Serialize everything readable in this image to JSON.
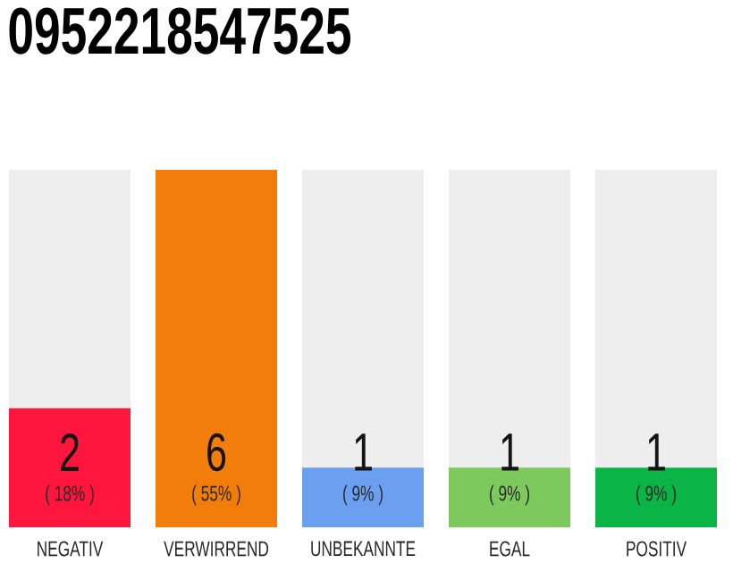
{
  "chart_data": {
    "type": "bar",
    "title": "0952218547525",
    "categories": [
      "NEGATIV",
      "VERWIRREND",
      "UNBEKANNTE",
      "EGAL",
      "POSITIV"
    ],
    "values": [
      2,
      6,
      1,
      1,
      1
    ],
    "colors": [
      "#fe163c",
      "#f27d0b",
      "#6b9ff0",
      "#7ec95e",
      "#0ab446"
    ],
    "data_labels": true,
    "annotations": [
      "( 18% )",
      "( 55% )",
      "( 9% )",
      "( 9% )",
      "( 9% )"
    ]
  }
}
